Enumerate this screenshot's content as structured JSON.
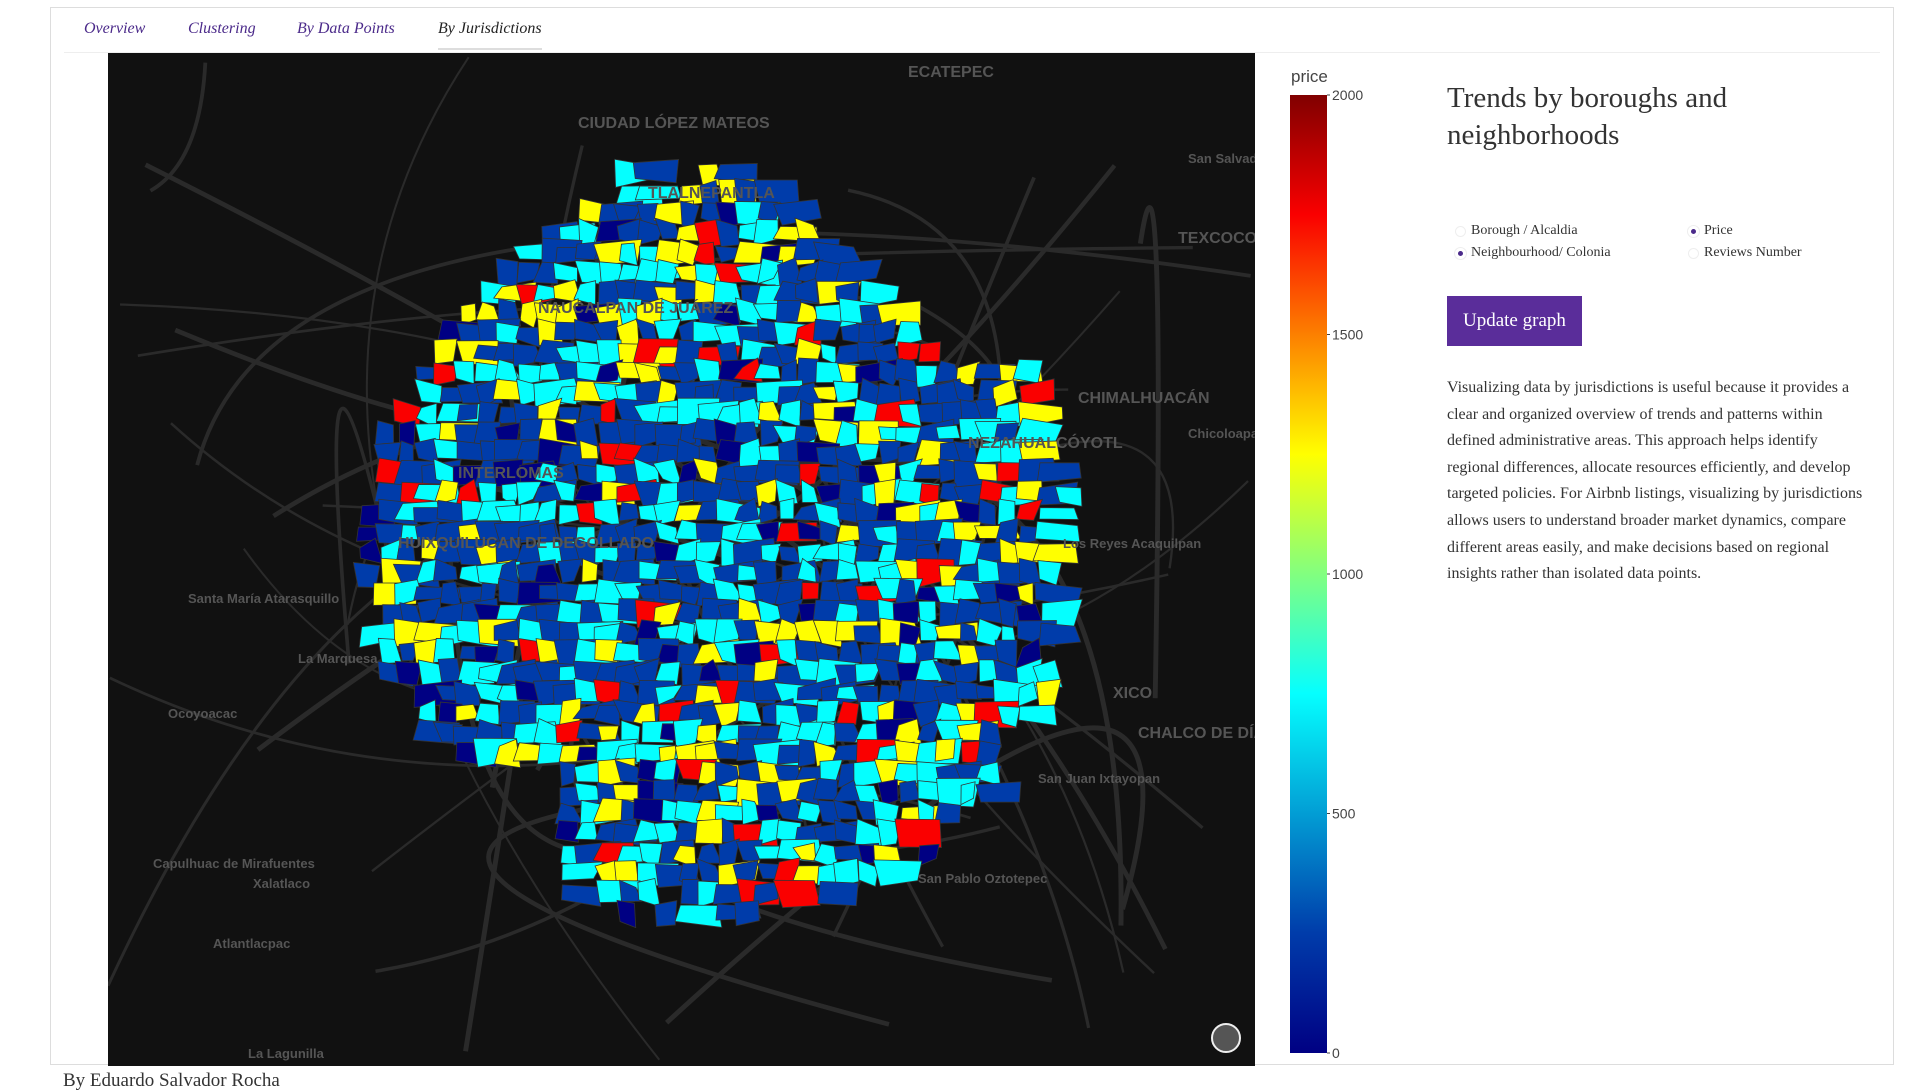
{
  "tabs": {
    "items": [
      "Overview",
      "Clustering",
      "By Data Points",
      "By Jurisdictions"
    ],
    "active": 3
  },
  "map": {
    "place_labels": [
      "ECATEPEC",
      "CIUDAD LÓPEZ MATEOS",
      "TLALNEPANTLA",
      "NAUCALPAN DE JUÁREZ",
      "San Salvador Atenco",
      "TEXCOCO",
      "CHIMALHUACÁN",
      "Chicoloapan",
      "NEZAHUALCÓYOTL",
      "INTERLOMAS",
      "HUIXQUILUCAN DE DEGOLLADO",
      "Los Reyes Acaquilpan",
      "Santa María Atarasquillo",
      "La Marquesa",
      "Ocoyoacac",
      "XICO",
      "CHALCO DE DÍAZ COVARRUBIAS",
      "San Juan Ixtayopan",
      "San Pablo Oztotepec",
      "Capulhuac de Mirafuentes",
      "Xalatlaco",
      "Atlantlacpac",
      "La Lagunilla"
    ]
  },
  "colorbar": {
    "title": "price",
    "colorscale": "Jet",
    "range": [
      0,
      2000
    ],
    "ticks": [
      0,
      500,
      1000,
      1500,
      2000
    ]
  },
  "panel": {
    "title": "Trends by boroughs and neighborhoods",
    "level_options": {
      "items": [
        "Borough / Alcaldia",
        "Neighbourhood/ Colonia"
      ],
      "selected": 1
    },
    "metric_options": {
      "items": [
        "Price",
        "Reviews Number"
      ],
      "selected": 0
    },
    "button": "Update graph",
    "description": "Visualizing data by jurisdictions is useful because it provides a clear and organized overview of trends and patterns within defined administrative areas. This approach helps identify regional differences, allocate resources efficiently, and develop targeted policies. For Airbnb listings, visualizing by jurisdictions allows users to understand broader market dynamics, compare different areas easily, and make decisions based on regional insights rather than isolated data points."
  },
  "footer": "By Eduardo Salvador Rocha"
}
